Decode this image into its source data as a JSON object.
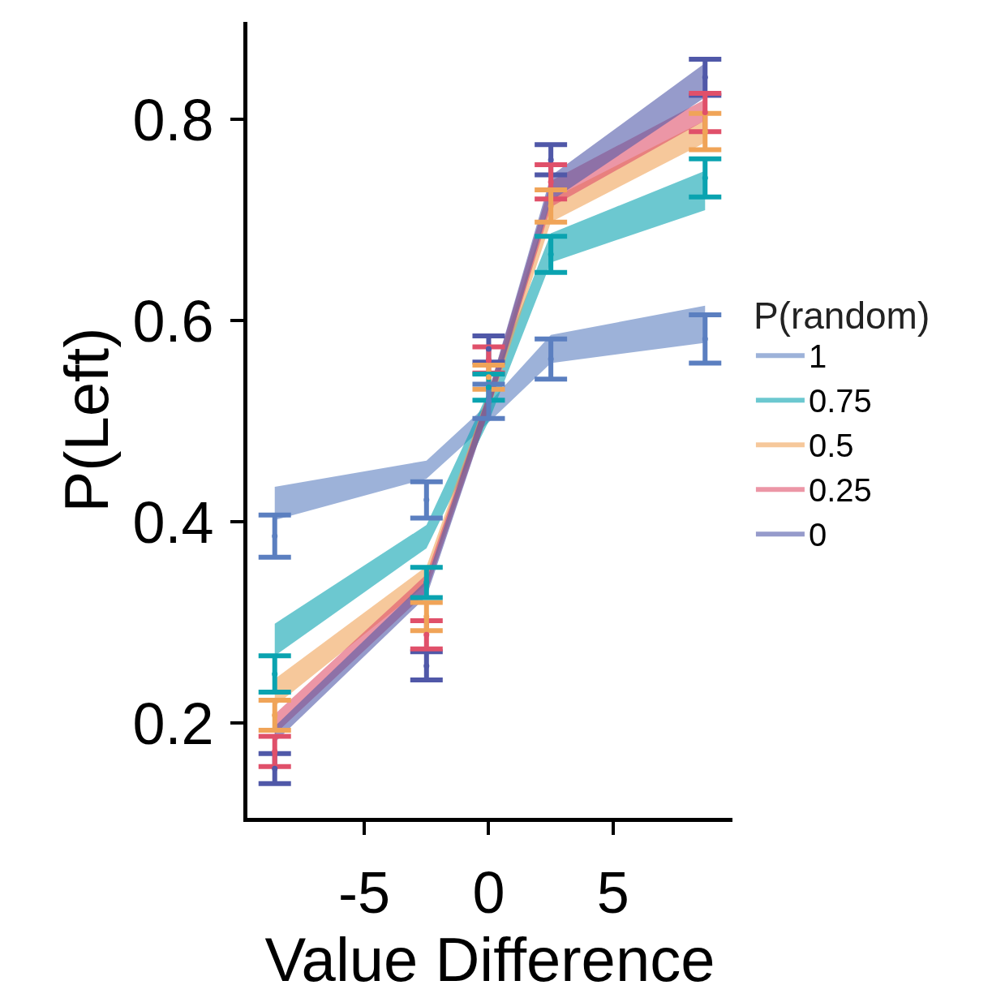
{
  "chart_data": {
    "type": "scatter",
    "xlabel": "Value Difference",
    "ylabel": "P(Left)",
    "legend_title": "P(random)",
    "x": [
      -8.6,
      -2.5,
      0,
      2.5,
      8.7
    ],
    "xlim": [
      -9.7,
      9.8
    ],
    "xticks": [
      -5,
      0,
      5
    ],
    "ylim": [
      0.106,
      0.897
    ],
    "yticks": [
      0.2,
      0.4,
      0.6,
      0.8
    ],
    "grid": false,
    "legend": "right",
    "marker": "none",
    "series": [
      {
        "name": "1",
        "color": "#5b7fc0",
        "values": [
          0.386,
          0.422,
          0.52,
          0.562,
          0.582
        ],
        "errors": [
          0.021,
          0.018,
          0.017,
          0.02,
          0.024
        ],
        "lower": [
          0.402,
          0.443,
          0.499,
          0.558,
          0.578
        ],
        "upper": [
          0.435,
          0.461,
          0.518,
          0.586,
          0.615
        ]
      },
      {
        "name": "0.75",
        "color": "#0aa3b0",
        "values": [
          0.249,
          0.34,
          0.534,
          0.666,
          0.742
        ],
        "errors": [
          0.018,
          0.015,
          0.013,
          0.018,
          0.019
        ],
        "lower": [
          0.267,
          0.374,
          0.5,
          0.658,
          0.71
        ],
        "upper": [
          0.299,
          0.397,
          0.53,
          0.687,
          0.749
        ]
      },
      {
        "name": "0.5",
        "color": "#f0a458",
        "values": [
          0.208,
          0.306,
          0.544,
          0.714,
          0.788
        ],
        "errors": [
          0.015,
          0.014,
          0.012,
          0.016,
          0.018
        ],
        "lower": [
          0.217,
          0.338,
          0.51,
          0.698,
          0.777
        ],
        "upper": [
          0.244,
          0.356,
          0.53,
          0.721,
          0.799
        ]
      },
      {
        "name": "0.25",
        "color": "#e0506a",
        "values": [
          0.172,
          0.288,
          0.561,
          0.738,
          0.807
        ],
        "errors": [
          0.015,
          0.014,
          0.013,
          0.017,
          0.019
        ],
        "lower": [
          0.189,
          0.33,
          0.51,
          0.713,
          0.799
        ],
        "upper": [
          0.209,
          0.348,
          0.53,
          0.739,
          0.82
        ]
      },
      {
        "name": "0",
        "color": "#5058a8",
        "values": [
          0.155,
          0.257,
          0.572,
          0.76,
          0.842
        ],
        "errors": [
          0.015,
          0.014,
          0.013,
          0.015,
          0.018
        ],
        "lower": [
          0.181,
          0.326,
          0.51,
          0.719,
          0.822
        ],
        "upper": [
          0.197,
          0.342,
          0.53,
          0.744,
          0.856
        ]
      }
    ]
  }
}
